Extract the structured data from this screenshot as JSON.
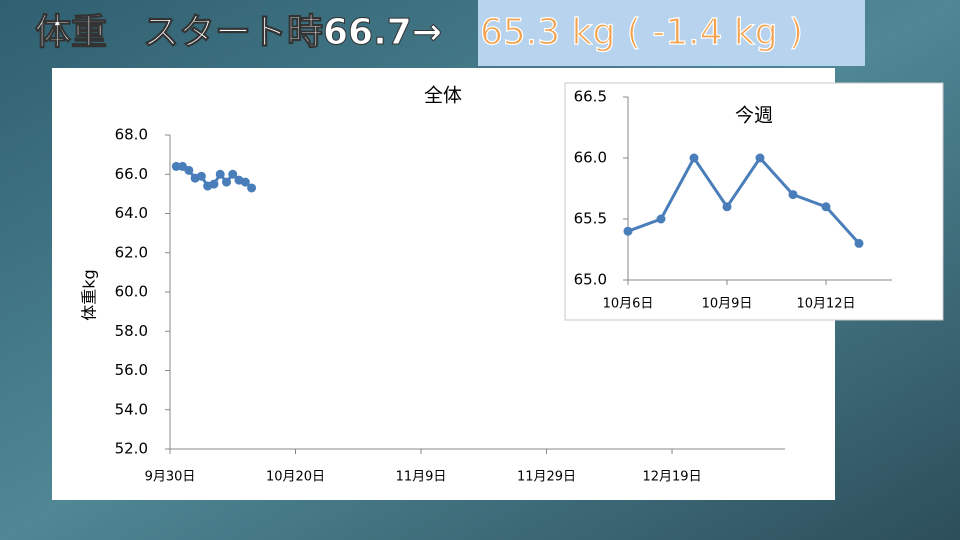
{
  "header": {
    "title": "体重　スタート時66.7→",
    "highlight": "65.3 kg ( -1.4 kg )"
  },
  "chart_data": [
    {
      "type": "line",
      "title": "全体",
      "y_label": "体重kg",
      "color": "#4a7ebb",
      "x": [
        "10月1日",
        "10月2日",
        "10月3日",
        "10月4日",
        "10月5日",
        "10月6日",
        "10月7日",
        "10月8日",
        "10月9日",
        "10月10日",
        "10月11日",
        "10月12日",
        "10月13日"
      ],
      "values": [
        66.4,
        66.4,
        66.2,
        65.8,
        65.9,
        65.4,
        65.5,
        66.0,
        65.6,
        66.0,
        65.7,
        65.6,
        65.3
      ],
      "xlim": [
        "9月30日",
        "1月6日"
      ],
      "xticks": [
        "9月30日",
        "10月20日",
        "11月9日",
        "11月29日",
        "12月19日"
      ],
      "ylim": [
        52,
        68
      ],
      "yticks": [
        {
          "value": 52,
          "label": "52.0"
        },
        {
          "value": 54,
          "label": "54.0"
        },
        {
          "value": 56,
          "label": "56.0"
        },
        {
          "value": 58,
          "label": "58.0"
        },
        {
          "value": 60,
          "label": "60.0"
        },
        {
          "value": 62,
          "label": "62.0"
        },
        {
          "value": 64,
          "label": "64.0"
        },
        {
          "value": 66,
          "label": "66.0"
        },
        {
          "value": 68,
          "label": "68.0"
        }
      ]
    },
    {
      "type": "line",
      "title": "今週",
      "color": "#4a7ebb",
      "x": [
        "10月6日",
        "10月7日",
        "10月8日",
        "10月9日",
        "10月10日",
        "10月11日",
        "10月12日",
        "10月13日"
      ],
      "values": [
        65.4,
        65.5,
        66.0,
        65.6,
        66.0,
        65.7,
        65.6,
        65.3
      ],
      "xlim": [
        "10月6日",
        "10月14日"
      ],
      "xticks": [
        "10月6日",
        "10月9日",
        "10月12日"
      ],
      "ylim": [
        65,
        66.5
      ],
      "yticks": [
        {
          "value": 65,
          "label": "65.0"
        },
        {
          "value": 65.5,
          "label": "65.5"
        },
        {
          "value": 66,
          "label": "66.0"
        },
        {
          "value": 66.5,
          "label": "66.5"
        }
      ]
    }
  ]
}
